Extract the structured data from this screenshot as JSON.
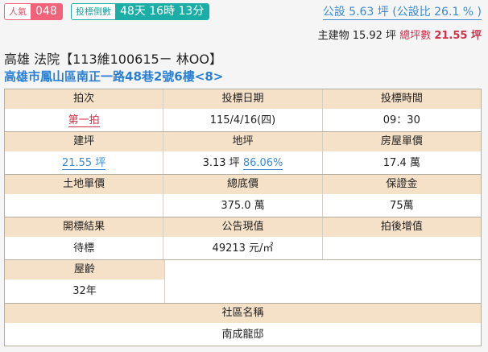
{
  "popularity": {
    "label": "人氣",
    "value": "048"
  },
  "countdown": {
    "label": "投標倒數",
    "value": "48天 16時 13分"
  },
  "public_area": "公設 5.63 坪 (公設比 26.1 % )",
  "area": {
    "main_label": "主建物 15.92 坪",
    "total_label": "總坪數",
    "total_value": "21.55 坪"
  },
  "title": "高雄 法院【113維100615ㄧ 林OO】",
  "address": "高雄市鳳山區南正一路48巷2號6樓<8>",
  "table": {
    "round": {
      "label": "拍次",
      "value": "第一拍"
    },
    "date": {
      "label": "投標日期",
      "value": "115/4/16(四)"
    },
    "time": {
      "label": "投標時間",
      "value": "09：30"
    },
    "building_area": {
      "label": "建坪",
      "value": "21.55 坪"
    },
    "land_area": {
      "label": "地坪",
      "value": "3.13 坪",
      "ratio": "86.06%"
    },
    "house_unit_price": {
      "label": "房屋單價",
      "value": "17.4 萬"
    },
    "land_unit_price": {
      "label": "土地單價",
      "value": ""
    },
    "base_price": {
      "label": "總底價",
      "value": "375.0 萬"
    },
    "deposit": {
      "label": "保證金",
      "value": "75萬"
    },
    "result": {
      "label": "開標結果",
      "value": "待標"
    },
    "announced_value": {
      "label": "公告現值",
      "value": "49213 元/㎡"
    },
    "post_increase": {
      "label": "拍後增值",
      "value": ""
    },
    "age": {
      "label": "屋齡",
      "value": "32年"
    },
    "community": {
      "label": "社區名稱",
      "value": "南成龍邸"
    }
  }
}
